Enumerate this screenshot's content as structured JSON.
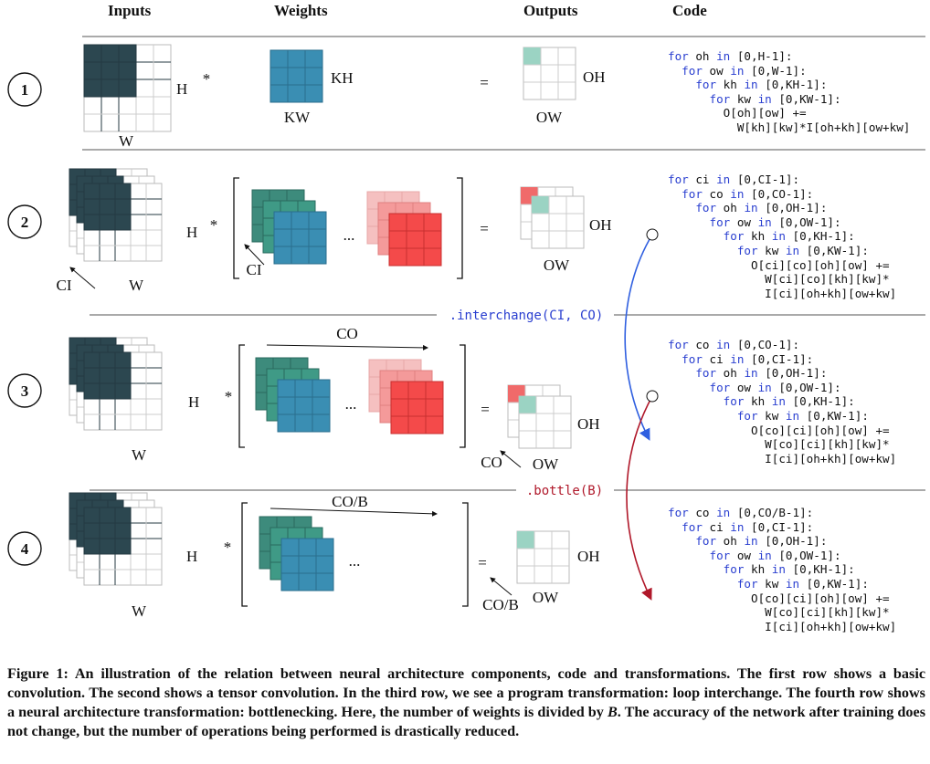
{
  "headers": {
    "inputs": "Inputs",
    "weights": "Weights",
    "outputs": "Outputs",
    "code": "Code"
  },
  "rows": [
    {
      "num": "1",
      "labels": {
        "h": "H",
        "w": "W",
        "kh": "KH",
        "kw": "KW",
        "oh": "OH",
        "ow": "OW"
      }
    },
    {
      "num": "2",
      "labels": {
        "h": "H",
        "w": "W",
        "ci_in": "CI",
        "ci_w": "CI",
        "oh": "OH",
        "ow": "OW"
      }
    },
    {
      "num": "3",
      "labels": {
        "h": "H",
        "w": "W",
        "co_w": "CO",
        "co_out": "CO",
        "oh": "OH",
        "ow": "OW"
      }
    },
    {
      "num": "4",
      "labels": {
        "h": "H",
        "w": "W",
        "cob_w": "CO/B",
        "cob_out": "CO/B",
        "oh": "OH",
        "ow": "OW"
      }
    }
  ],
  "symbols": {
    "star": "*",
    "equals": "=",
    "dots": "..."
  },
  "transforms": {
    "interchange": ".interchange(CI, CO)",
    "bottle": ".bottle(B)"
  },
  "code_blocks": [
    [
      [
        [
          "kw",
          "for"
        ],
        " oh ",
        [
          "kw",
          "in"
        ],
        " [0,H-1]:"
      ],
      [
        "  ",
        [
          "kw",
          "for"
        ],
        " ow ",
        [
          "kw",
          "in"
        ],
        " [0,W-1]:"
      ],
      [
        "    ",
        [
          "kw",
          "for"
        ],
        " kh ",
        [
          "kw",
          "in"
        ],
        " [0,KH-1]:"
      ],
      [
        "      ",
        [
          "kw",
          "for"
        ],
        " kw ",
        [
          "kw",
          "in"
        ],
        " [0,KW-1]:"
      ],
      [
        "        O[oh][ow] +="
      ],
      [
        "          W[kh][kw]*I[oh+kh][ow+kw]"
      ]
    ],
    [
      [
        [
          "kw",
          "for"
        ],
        " ci ",
        [
          "kw",
          "in"
        ],
        " [0,CI-1]:"
      ],
      [
        "  ",
        [
          "kw",
          "for"
        ],
        " co ",
        [
          "kw",
          "in"
        ],
        " [0,CO-1]:"
      ],
      [
        "    ",
        [
          "kw",
          "for"
        ],
        " oh ",
        [
          "kw",
          "in"
        ],
        " [0,OH-1]:"
      ],
      [
        "      ",
        [
          "kw",
          "for"
        ],
        " ow ",
        [
          "kw",
          "in"
        ],
        " [0,OW-1]:"
      ],
      [
        "        ",
        [
          "kw",
          "for"
        ],
        " kh ",
        [
          "kw",
          "in"
        ],
        " [0,KH-1]:"
      ],
      [
        "          ",
        [
          "kw",
          "for"
        ],
        " kw ",
        [
          "kw",
          "in"
        ],
        " [0,KW-1]:"
      ],
      [
        "            O[ci][co][oh][ow] +="
      ],
      [
        "              W[ci][co][kh][kw]*"
      ],
      [
        "              I[ci][oh+kh][ow+kw]"
      ]
    ],
    [
      [
        [
          "kw",
          "for"
        ],
        " co ",
        [
          "kw",
          "in"
        ],
        " [0,CO-1]:"
      ],
      [
        "  ",
        [
          "kw",
          "for"
        ],
        " ci ",
        [
          "kw",
          "in"
        ],
        " [0,CI-1]:"
      ],
      [
        "    ",
        [
          "kw",
          "for"
        ],
        " oh ",
        [
          "kw",
          "in"
        ],
        " [0,OH-1]:"
      ],
      [
        "      ",
        [
          "kw",
          "for"
        ],
        " ow ",
        [
          "kw",
          "in"
        ],
        " [0,OW-1]:"
      ],
      [
        "        ",
        [
          "kw",
          "for"
        ],
        " kh ",
        [
          "kw",
          "in"
        ],
        " [0,KH-1]:"
      ],
      [
        "          ",
        [
          "kw",
          "for"
        ],
        " kw ",
        [
          "kw",
          "in"
        ],
        " [0,KW-1]:"
      ],
      [
        "            O[co][ci][oh][ow] +="
      ],
      [
        "              W[co][ci][kh][kw]*"
      ],
      [
        "              I[ci][oh+kh][ow+kw]"
      ]
    ],
    [
      [
        [
          "kw",
          "for"
        ],
        " co ",
        [
          "kw",
          "in"
        ],
        " [0,CO/B-1]:"
      ],
      [
        "  ",
        [
          "kw",
          "for"
        ],
        " ci ",
        [
          "kw",
          "in"
        ],
        " [0,CI-1]:"
      ],
      [
        "    ",
        [
          "kw",
          "for"
        ],
        " oh ",
        [
          "kw",
          "in"
        ],
        " [0,OH-1]:"
      ],
      [
        "      ",
        [
          "kw",
          "for"
        ],
        " ow ",
        [
          "kw",
          "in"
        ],
        " [0,OW-1]:"
      ],
      [
        "        ",
        [
          "kw",
          "for"
        ],
        " kh ",
        [
          "kw",
          "in"
        ],
        " [0,KH-1]:"
      ],
      [
        "          ",
        [
          "kw",
          "for"
        ],
        " kw ",
        [
          "kw",
          "in"
        ],
        " [0,KW-1]:"
      ],
      [
        "            O[co][ci][oh][ow] +="
      ],
      [
        "              W[co][ci][kh][kw]*"
      ],
      [
        "              I[ci][oh+kh][ow+kw]"
      ]
    ]
  ],
  "caption": {
    "label": "Figure 1:",
    "text_a": " An illustration of the relation between neural architecture components, code and transformations. The first row shows a basic convolution. The second shows a tensor convolution. In the third row, we see a program transformation: loop interchange. The fourth row shows a neural architecture transformation: bottlenecking. Here, the number of weights is divided by ",
    "var": "B",
    "text_b": ". The accuracy of the network after training does not change, but the number of operations being performed is drastically reduced."
  },
  "colors": {
    "input_dark": "#2c4750",
    "teal": "#3d8b7c",
    "blue": "#3a8eb3",
    "red": "#f44a4a",
    "pink1": "#f5c0c0",
    "pink2": "#f49a9a",
    "out_teal": "#9bd3c3",
    "out_red": "#f06a6a",
    "kw_blue": "#2a3fd0",
    "arrow_blue": "#2f5fe0",
    "arrow_red": "#b0182a"
  }
}
